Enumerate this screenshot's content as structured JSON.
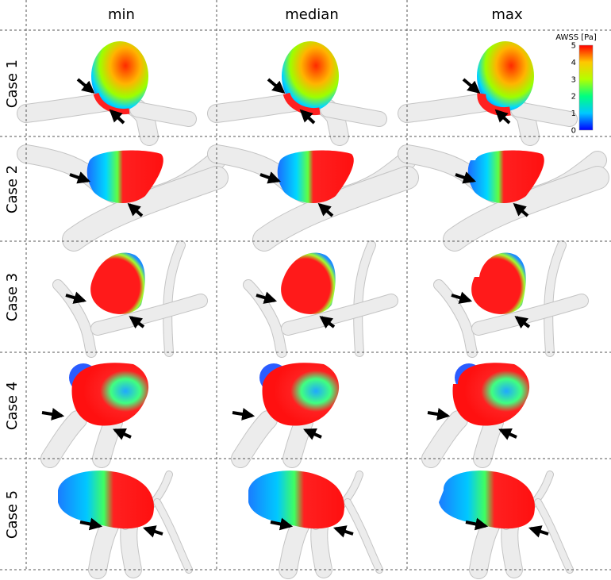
{
  "columns": [
    "min",
    "median",
    "max"
  ],
  "rows": [
    "Case 1",
    "Case 2",
    "Case 3",
    "Case 4",
    "Case 5"
  ],
  "colorbar": {
    "title": "AWSS [Pa]",
    "ticks": [
      "0",
      "1",
      "2",
      "3",
      "4",
      "5"
    ],
    "range": [
      0,
      5
    ],
    "colors": [
      "#0000ff",
      "#00c8ff",
      "#00ff80",
      "#b4ff00",
      "#ffc800",
      "#ff0000"
    ]
  },
  "colors": {
    "vessel": "#e6e6e6",
    "low": "#1e6bff",
    "mid": "#3fe06a",
    "high": "#ff1e1e",
    "arrow": "#000000"
  }
}
